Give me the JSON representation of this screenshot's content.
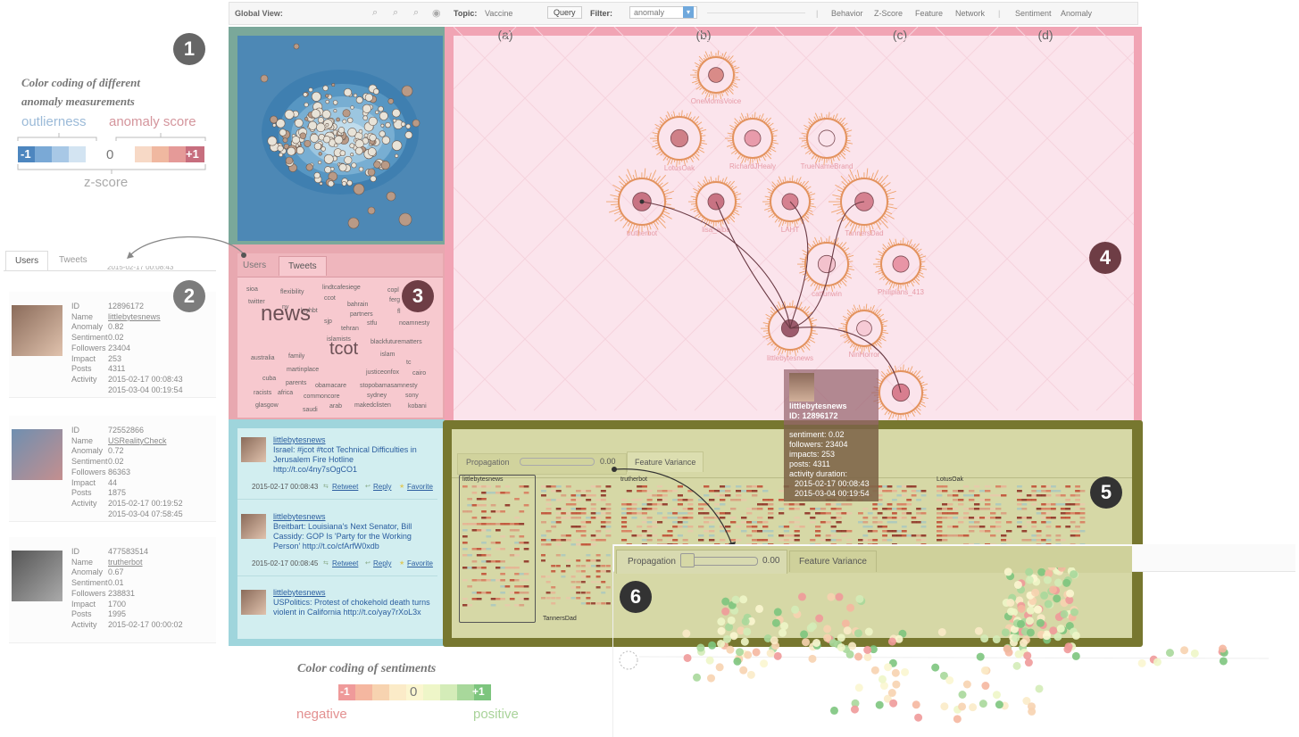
{
  "topbar": {
    "global_view": "Global View:",
    "topic_label": "Topic:",
    "topic_value": "Vaccine",
    "query_button": "Query",
    "filter_label": "Filter:",
    "filter_value": "anomaly",
    "nav": [
      "Behavior",
      "Z-Score",
      "Feature",
      "Network",
      "Sentiment",
      "Anomaly"
    ]
  },
  "legend_anomaly": {
    "title_line1": "Color coding of different",
    "title_line2": "anomaly measurements",
    "outlierness": "outlierness",
    "anomaly_score": "anomaly score",
    "minus": "-1",
    "zero": "0",
    "plus": "+1",
    "zscore": "z-score",
    "colors_neg": [
      "#4d86bf",
      "#7aa9d6",
      "#a8c8e6",
      "#d3e4f2"
    ],
    "colors_pos": [
      "#f7d9c6",
      "#f0b8a0",
      "#e59a98",
      "#c76e7e"
    ]
  },
  "legend_sentiment": {
    "title": "Color coding of sentiments",
    "minus": "-1",
    "zero": "0",
    "plus": "+1",
    "negative": "negative",
    "positive": "positive",
    "colors": [
      "#ef9a9a",
      "#f5b7a0",
      "#f7d3b0",
      "#fbebc8",
      "#fbf6d0",
      "#eef6c8",
      "#d4ecb8",
      "#a8d89b",
      "#7dc57e"
    ]
  },
  "badges": [
    "1",
    "2",
    "3",
    "4",
    "5",
    "6"
  ],
  "user_list": {
    "tabs": [
      "Users",
      "Tweets"
    ],
    "field_labels": [
      "ID",
      "Name",
      "Anomaly",
      "Sentiment",
      "Followers",
      "Impact",
      "Posts",
      "Activity"
    ],
    "users": [
      {
        "id": "12896172",
        "name": "littlebytesnews",
        "anomaly": "0.82",
        "sentiment": "0.02",
        "followers": "23404",
        "impact": "253",
        "posts": "4311",
        "activity1": "2015-02-17 00:08:43",
        "activity2": "2015-03-04 00:19:54"
      },
      {
        "id": "72552866",
        "name": "USRealityCheck",
        "anomaly": "0.72",
        "sentiment": "0.02",
        "followers": "86363",
        "impact": "44",
        "posts": "1875",
        "activity1": "2015-02-17 00:19:52",
        "activity2": "2015-03-04 07:58:45"
      },
      {
        "id": "477583514",
        "name": "trutherbot",
        "anomaly": "0.67",
        "sentiment": "0.01",
        "followers": "238831",
        "impact": "1700",
        "posts": "1995",
        "activity1": "2015-02-17 00:00:02",
        "activity2": ""
      }
    ]
  },
  "cloud_panel": {
    "tabs": [
      "Users",
      "Tweets"
    ],
    "words": [
      {
        "t": "sioa",
        "s": 7
      },
      {
        "t": "flexibility",
        "s": 7
      },
      {
        "t": "lindtcafesiege",
        "s": 7
      },
      {
        "t": "copl",
        "s": 7
      },
      {
        "t": "twitter",
        "s": 7
      },
      {
        "t": "ccot",
        "s": 7
      },
      {
        "t": "ferg",
        "s": 7
      },
      {
        "t": "ny",
        "s": 7
      },
      {
        "t": "bahrain",
        "s": 7
      },
      {
        "t": "lnyhbt",
        "s": 7
      },
      {
        "t": "fl",
        "s": 7
      },
      {
        "t": "partners",
        "s": 7
      },
      {
        "t": "news",
        "s": 24
      },
      {
        "t": "sjp",
        "s": 7
      },
      {
        "t": "stfu",
        "s": 7
      },
      {
        "t": "noamnesty",
        "s": 7
      },
      {
        "t": "tehran",
        "s": 7
      },
      {
        "t": "islamists",
        "s": 7
      },
      {
        "t": "blackfuturematters",
        "s": 7
      },
      {
        "t": "islam",
        "s": 7
      },
      {
        "t": "australia",
        "s": 7
      },
      {
        "t": "family",
        "s": 7
      },
      {
        "t": "tcot",
        "s": 20
      },
      {
        "t": "tc",
        "s": 7
      },
      {
        "t": "martinplace",
        "s": 7
      },
      {
        "t": "justiceonfox",
        "s": 7
      },
      {
        "t": "cairo",
        "s": 7
      },
      {
        "t": "cuba",
        "s": 7
      },
      {
        "t": "parents",
        "s": 7
      },
      {
        "t": "obamacare",
        "s": 7
      },
      {
        "t": "stopobamasamnesty",
        "s": 7
      },
      {
        "t": "racists",
        "s": 7
      },
      {
        "t": "africa",
        "s": 7
      },
      {
        "t": "commoncore",
        "s": 7
      },
      {
        "t": "sydney",
        "s": 7
      },
      {
        "t": "sony",
        "s": 7
      },
      {
        "t": "glasgow",
        "s": 7
      },
      {
        "t": "saudi",
        "s": 7
      },
      {
        "t": "arab",
        "s": 7
      },
      {
        "t": "makedclisten",
        "s": 7
      },
      {
        "t": "kobani",
        "s": 7
      }
    ]
  },
  "tweets": [
    {
      "user": "littlebytesnews",
      "text": "Israel: #jcot #tcot Technical Difficulties in Jerusalem Fire Hotline http://t.co/4ny7sOgCO1",
      "time": "2015-02-17 00:08:43",
      "retweet": "Retweet",
      "reply": "Reply",
      "favorite": "Favorite"
    },
    {
      "user": "littlebytesnews",
      "text": "Breitbart: Louisiana's Next Senator, Bill Cassidy: GOP Is 'Party for the Working Person' http://t.co/cfArfW0xdb",
      "time": "2015-02-17 00:08:45",
      "retweet": "Retweet",
      "reply": "Reply",
      "favorite": "Favorite"
    },
    {
      "user": "littlebytesnews",
      "text": "USPolitics: Protest of chokehold death turns violent in California http://t.co/yay7rXoL3x",
      "time": "",
      "retweet": "",
      "reply": "",
      "favorite": ""
    }
  ],
  "glyph_panel": {
    "columns": [
      "(a)",
      "(b)",
      "(c)",
      "(d)"
    ],
    "nodes": [
      "OneMomsVoice",
      "LotusOak",
      "RichardJHealy",
      "TrueNameBrand",
      "trutherbot",
      "lisa_alba",
      "LAHT",
      "TannersDad",
      "catfunwin",
      "Philipians_413",
      "littlebytesnews",
      "NinHorror"
    ]
  },
  "tooltip": {
    "name": "littlebytesnews",
    "id": "ID: 12896172",
    "sentiment": "sentiment: 0.02",
    "followers": "followers: 23404",
    "impacts": "impacts: 253",
    "posts": "posts: 4311",
    "duration": "activity duration:",
    "d1": "2015-02-17 00:08:43",
    "d2": "2015-03-04 00:19:54"
  },
  "feature_panel": {
    "propagation": "Propagation",
    "prop_value": "0.00",
    "feature_variance": "Feature Variance",
    "labels": [
      "littlebytesnews",
      "trutherbot",
      "LotusOak",
      "TannersDad"
    ]
  },
  "sub_panel": {
    "propagation": "Propagation",
    "prop_value": "0.00",
    "feature_variance": "Feature Variance"
  }
}
